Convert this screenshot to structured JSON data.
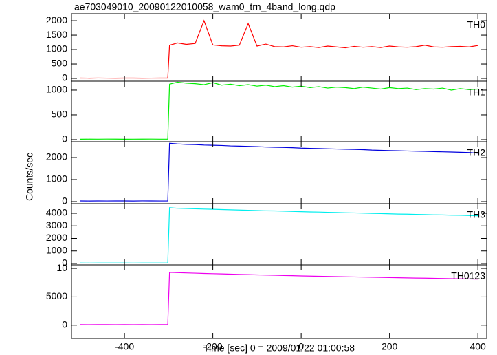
{
  "chart_data": [
    {
      "type": "line",
      "title": "ae703049010_20090122010058_wam0_trn_4band_long.qdp",
      "label": "TH0",
      "x": [
        -500,
        -480,
        -460,
        -440,
        -420,
        -400,
        -380,
        -360,
        -340,
        -320,
        -302,
        -298,
        -280,
        -260,
        -240,
        -220,
        -200,
        -180,
        -160,
        -140,
        -120,
        -100,
        -80,
        -60,
        -40,
        -20,
        0,
        20,
        40,
        60,
        80,
        100,
        120,
        140,
        160,
        180,
        200,
        220,
        240,
        260,
        280,
        300,
        320,
        340,
        360,
        380,
        400
      ],
      "series": [
        {
          "name": "TH0",
          "color": "#ff0000",
          "values": [
            12,
            10,
            14,
            11,
            9,
            13,
            12,
            10,
            11,
            13,
            12,
            1150,
            1230,
            1180,
            1210,
            2000,
            1160,
            1130,
            1120,
            1150,
            1900,
            1120,
            1190,
            1100,
            1090,
            1130,
            1080,
            1100,
            1070,
            1120,
            1090,
            1060,
            1110,
            1080,
            1100,
            1070,
            1120,
            1090,
            1080,
            1100,
            1150,
            1090,
            1080,
            1100,
            1110,
            1090,
            1140
          ]
        }
      ],
      "xlim": [
        -520,
        420
      ],
      "ylim": [
        -95,
        2240
      ],
      "yticks": [
        0,
        500,
        1000,
        1500,
        2000
      ]
    },
    {
      "type": "line",
      "label": "TH1",
      "x": [
        -500,
        -480,
        -460,
        -440,
        -420,
        -400,
        -380,
        -360,
        -340,
        -320,
        -302,
        -298,
        -280,
        -260,
        -240,
        -220,
        -200,
        -180,
        -160,
        -140,
        -120,
        -100,
        -80,
        -60,
        -40,
        -20,
        0,
        20,
        40,
        60,
        80,
        100,
        120,
        140,
        160,
        180,
        200,
        220,
        240,
        260,
        280,
        300,
        320,
        340,
        360,
        380,
        400
      ],
      "series": [
        {
          "name": "TH1",
          "color": "#00ee00",
          "values": [
            8,
            10,
            9,
            11,
            10,
            8,
            9,
            10,
            11,
            9,
            10,
            1120,
            1160,
            1140,
            1130,
            1110,
            1150,
            1100,
            1120,
            1090,
            1110,
            1080,
            1100,
            1070,
            1090,
            1060,
            1080,
            1050,
            1070,
            1040,
            1060,
            1050,
            1030,
            1060,
            1040,
            1020,
            1050,
            1030,
            1040,
            1010,
            1030,
            1020,
            1040,
            1000,
            1030,
            1010,
            1020
          ]
        }
      ],
      "xlim": [
        -520,
        420
      ],
      "ylim": [
        -42,
        1180
      ],
      "yticks": [
        0,
        500,
        1000
      ]
    },
    {
      "type": "line",
      "label": "TH2",
      "y_label": "Counts/sec",
      "x": [
        -500,
        -480,
        -460,
        -440,
        -420,
        -400,
        -380,
        -360,
        -340,
        -320,
        -302,
        -298,
        -280,
        -260,
        -240,
        -220,
        -200,
        -180,
        -160,
        -140,
        -120,
        -100,
        -80,
        -60,
        -40,
        -20,
        0,
        20,
        40,
        60,
        80,
        100,
        120,
        140,
        160,
        180,
        200,
        220,
        240,
        260,
        280,
        300,
        320,
        340,
        360,
        380,
        400
      ],
      "series": [
        {
          "name": "TH2",
          "color": "#0000dd",
          "values": [
            30,
            28,
            32,
            29,
            31,
            30,
            27,
            33,
            30,
            29,
            31,
            2650,
            2620,
            2600,
            2590,
            2570,
            2560,
            2550,
            2530,
            2520,
            2510,
            2500,
            2480,
            2470,
            2460,
            2450,
            2430,
            2420,
            2410,
            2400,
            2390,
            2380,
            2370,
            2360,
            2340,
            2330,
            2320,
            2310,
            2300,
            2290,
            2280,
            2270,
            2260,
            2250,
            2240,
            2230,
            2200
          ]
        }
      ],
      "xlim": [
        -520,
        420
      ],
      "ylim": [
        -94,
        2720
      ],
      "yticks": [
        0,
        1000,
        2000
      ]
    },
    {
      "type": "line",
      "label": "TH3",
      "x": [
        -500,
        -480,
        -460,
        -440,
        -420,
        -400,
        -380,
        -360,
        -340,
        -320,
        -302,
        -298,
        -280,
        -260,
        -240,
        -220,
        -200,
        -180,
        -160,
        -140,
        -120,
        -100,
        -80,
        -60,
        -40,
        -20,
        0,
        20,
        40,
        60,
        80,
        100,
        120,
        140,
        160,
        180,
        200,
        220,
        240,
        260,
        280,
        300,
        320,
        340,
        360,
        380,
        400
      ],
      "series": [
        {
          "name": "TH3",
          "color": "#00eeee",
          "values": [
            42,
            38,
            41,
            39,
            40,
            43,
            37,
            41,
            40,
            39,
            42,
            4450,
            4400,
            4380,
            4360,
            4340,
            4320,
            4300,
            4280,
            4260,
            4240,
            4220,
            4200,
            4190,
            4170,
            4150,
            4130,
            4110,
            4100,
            4080,
            4060,
            4040,
            4030,
            4010,
            3990,
            3980,
            3960,
            3940,
            3930,
            3910,
            3900,
            3880,
            3870,
            3850,
            3840,
            3820,
            3800
          ]
        }
      ],
      "xlim": [
        -520,
        420
      ],
      "ylim": [
        -110,
        4767
      ],
      "yticks": [
        0,
        1000,
        2000,
        3000,
        4000
      ]
    },
    {
      "type": "line",
      "label": "TH0123",
      "x_label": "Time [sec] 0 = 2009/01/22 01:00:58",
      "x": [
        -500,
        -480,
        -460,
        -440,
        -420,
        -400,
        -380,
        -360,
        -340,
        -320,
        -302,
        -298,
        -280,
        -260,
        -240,
        -220,
        -200,
        -180,
        -160,
        -140,
        -120,
        -100,
        -80,
        -60,
        -40,
        -20,
        0,
        20,
        40,
        60,
        80,
        100,
        120,
        140,
        160,
        180,
        200,
        220,
        240,
        260,
        280,
        300,
        320,
        340,
        360,
        380,
        400
      ],
      "series": [
        {
          "name": "TH0123",
          "color": "#ee00ee",
          "values": [
            110,
            105,
            112,
            108,
            106,
            111,
            104,
            109,
            107,
            110,
            108,
            9300,
            9250,
            9200,
            9150,
            9100,
            9060,
            9020,
            8980,
            8940,
            8900,
            8860,
            8820,
            8790,
            8750,
            8720,
            8680,
            8650,
            8620,
            8590,
            8560,
            8530,
            8500,
            8470,
            8440,
            8410,
            8380,
            8360,
            8330,
            8300,
            8280,
            8250,
            8230,
            8200,
            8180,
            8150,
            8120
          ]
        }
      ],
      "xlim": [
        -520,
        420
      ],
      "ylim": [
        -2320,
        10610
      ],
      "yticks": [
        0,
        5000,
        {
          "value": 10000,
          "label": "10"
        }
      ],
      "xticks": [
        -400,
        -200,
        0,
        200,
        400
      ]
    }
  ]
}
